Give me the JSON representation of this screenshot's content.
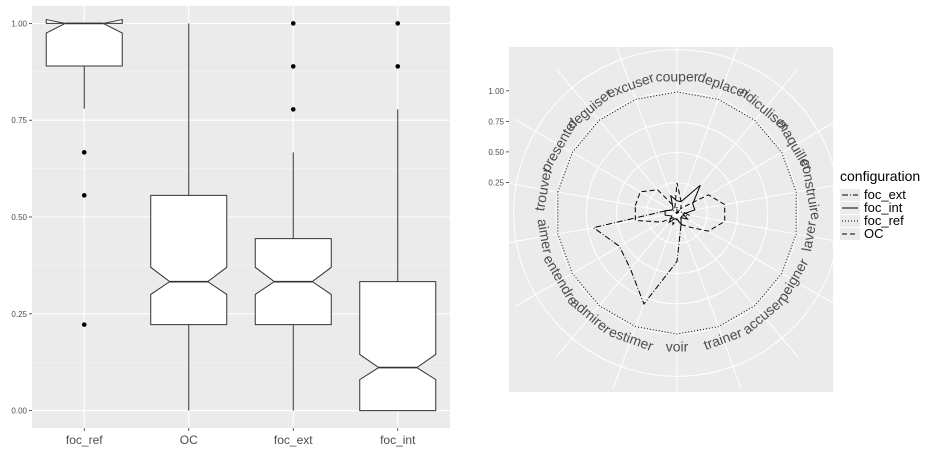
{
  "chart_data": [
    {
      "type": "boxplot",
      "categories": [
        "foc_ref",
        "OC",
        "foc_ext",
        "foc_int"
      ],
      "notched": true,
      "ylim": [
        0,
        1.03
      ],
      "yticks": [
        "0.00",
        "0.25",
        "0.50",
        "0.75",
        "1.00"
      ],
      "ytick_values": [
        0,
        0.25,
        0.5,
        0.75,
        1.0
      ],
      "background": "#ebebeb",
      "grid": true,
      "boxes": [
        {
          "name": "foc_ref",
          "min": 0.78,
          "q1": 0.89,
          "median": 1.0,
          "q3": 1.0,
          "max": 1.0,
          "notch_low": 0.975,
          "notch_high": 1.01,
          "outliers": [
            0.667,
            0.556,
            0.222
          ]
        },
        {
          "name": "OC",
          "min": 0.0,
          "q1": 0.222,
          "median": 0.333,
          "q3": 0.556,
          "max": 1.0,
          "notch_low": 0.3,
          "notch_high": 0.37,
          "outliers": []
        },
        {
          "name": "foc_ext",
          "min": 0.0,
          "q1": 0.222,
          "median": 0.333,
          "q3": 0.444,
          "max": 0.667,
          "notch_low": 0.3,
          "notch_high": 0.37,
          "outliers": [
            0.778,
            0.889,
            1.0
          ]
        },
        {
          "name": "foc_int",
          "min": 0.0,
          "q1": 0.0,
          "median": 0.111,
          "q3": 0.333,
          "max": 0.778,
          "notch_low": 0.08,
          "notch_high": 0.145,
          "outliers": [
            0.889,
            1.0
          ]
        }
      ]
    },
    {
      "type": "radar",
      "axes": [
        "trouver",
        "presenter",
        "deguiser",
        "excuser",
        "couper",
        "deplacer",
        "ridiculiser",
        "maquiller",
        "construire",
        "laver",
        "peigner",
        "accuser",
        "trainer",
        "voir",
        "estimer",
        "admirer",
        "entendre",
        "aimer"
      ],
      "rticks": [
        "0.25",
        "0.50",
        "0.75",
        "1.00"
      ],
      "rtick_values": [
        0.25,
        0.5,
        0.75,
        1.0
      ],
      "rlim": [
        0,
        1
      ],
      "background": "#ebebeb",
      "grid": true,
      "series": [
        {
          "name": "foc_ext",
          "dash": "6,2,1,2",
          "values": [
            0.1,
            0.05,
            0.0,
            0.0,
            0.05,
            0.0,
            0.05,
            0.0,
            0.05,
            0.1,
            0.05,
            0.05,
            0.1,
            0.4,
            0.8,
            0.6,
            0.55,
            0.7
          ]
        },
        {
          "name": "foc_int",
          "dash": "",
          "values": [
            0.1,
            0.05,
            0.05,
            0.15,
            0.1,
            0.1,
            0.3,
            0.15,
            0.15,
            0.05,
            0.1,
            0.05,
            0.1,
            0.05,
            0.05,
            0.1,
            0.05,
            0.1
          ]
        },
        {
          "name": "foc_ref",
          "dash": "1,2",
          "values": [
            1.0,
            1.0,
            1.0,
            1.0,
            1.0,
            1.0,
            1.0,
            1.0,
            1.0,
            1.0,
            1.0,
            1.0,
            1.0,
            1.0,
            1.0,
            1.0,
            1.0,
            1.0
          ]
        },
        {
          "name": "OC",
          "dash": "5,3",
          "values": [
            0.35,
            0.35,
            0.25,
            0.05,
            0.25,
            0.1,
            0.05,
            0.3,
            0.4,
            0.4,
            0.3,
            0.15,
            0.1,
            0.05,
            0.1,
            0.05,
            0.15,
            0.35
          ]
        }
      ]
    }
  ],
  "legend": {
    "title": "configuration",
    "items": [
      {
        "label": "foc_ext",
        "dash": "6,2,1,2"
      },
      {
        "label": "foc_int",
        "dash": ""
      },
      {
        "label": "foc_ref",
        "dash": "1,2"
      },
      {
        "label": "OC",
        "dash": "5,3"
      }
    ]
  }
}
